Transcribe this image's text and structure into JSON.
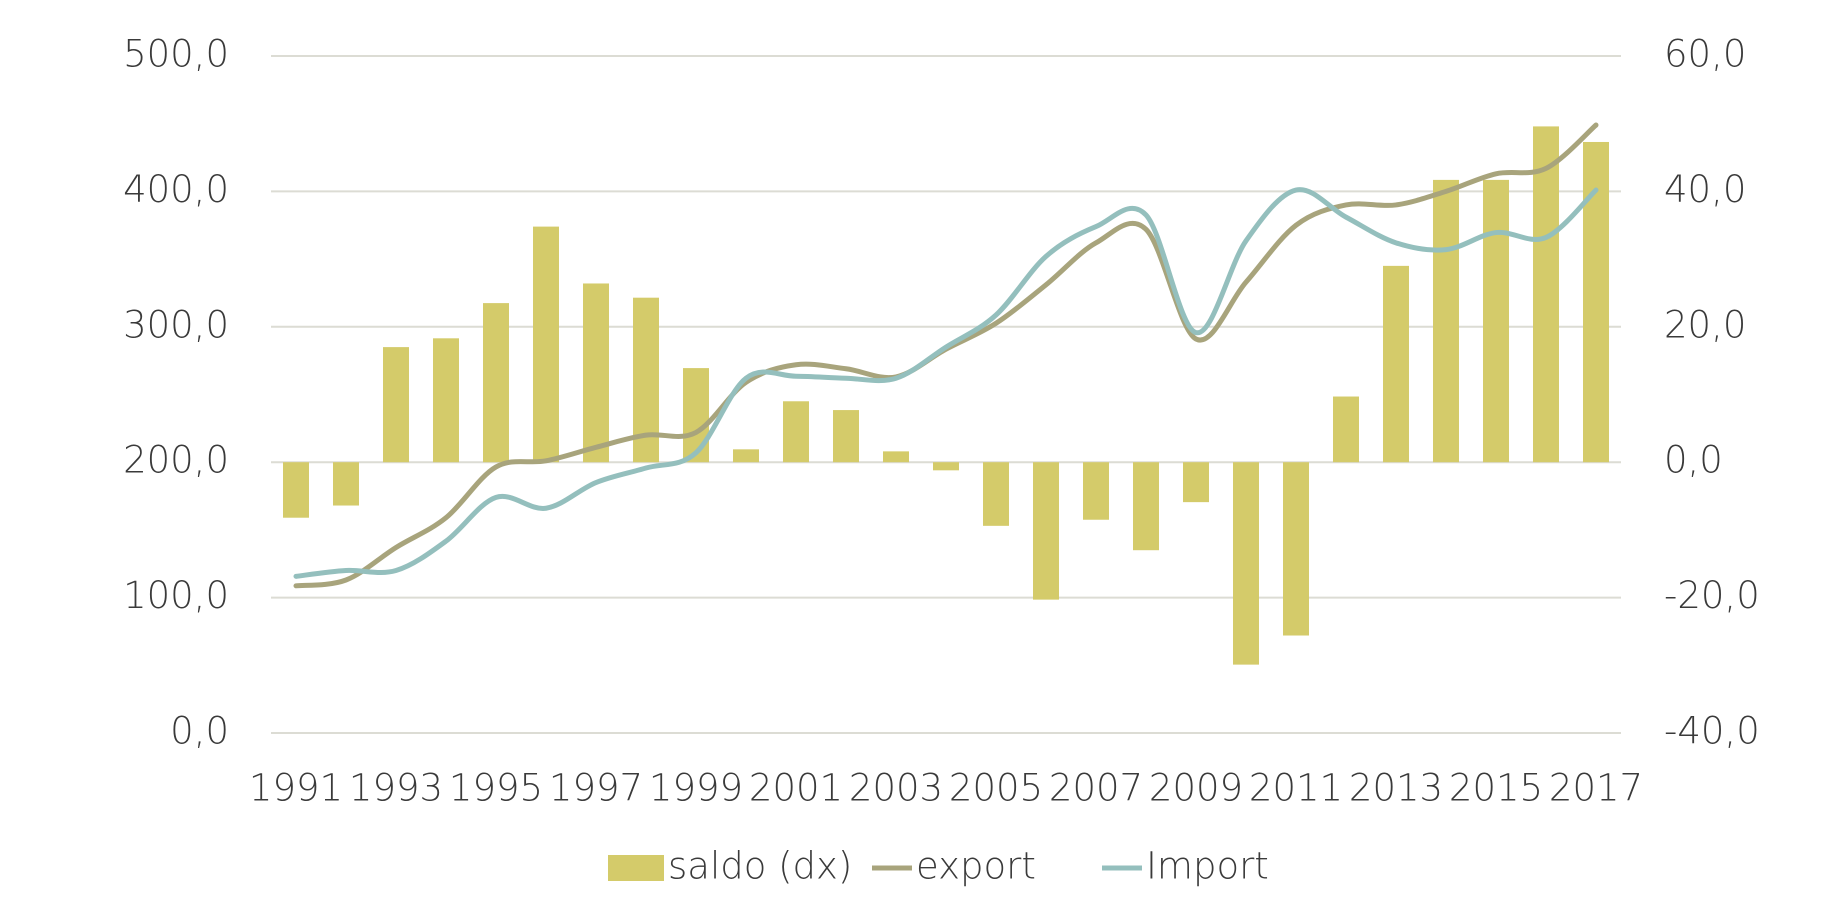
{
  "chart_data": {
    "type": "combo",
    "x": [
      "1991",
      null,
      "1993",
      null,
      "1995",
      null,
      "1997",
      null,
      "1999",
      null,
      "2001",
      null,
      "2003",
      null,
      "2005",
      null,
      "2007",
      null,
      "2009",
      null,
      "2011",
      null,
      "2013",
      null,
      "2015",
      null,
      "2017"
    ],
    "series": [
      {
        "name": "saldo (dx)",
        "type": "bar",
        "axis": "y2",
        "color": "#d4cb6a",
        "values": [
          -8.2,
          -6.4,
          17.0,
          18.3,
          23.5,
          34.8,
          26.4,
          24.3,
          13.9,
          1.9,
          9.0,
          7.7,
          1.6,
          -1.2,
          -9.4,
          -20.3,
          -8.5,
          -13.0,
          -5.9,
          -29.9,
          -25.6,
          9.7,
          29.0,
          41.7,
          41.7,
          49.6,
          47.3
        ]
      },
      {
        "name": "export",
        "type": "line",
        "color": "#a8a47c",
        "values": [
          108.7,
          113,
          137,
          159,
          196.5,
          201,
          211,
          220,
          222,
          259,
          272,
          269,
          263,
          283.5,
          302.6,
          331,
          362,
          372,
          291,
          333,
          375,
          390,
          390,
          400,
          413,
          417,
          449
        ]
      },
      {
        "name": "Import",
        "type": "line",
        "color": "#94bfbd",
        "values": [
          115.7,
          120,
          120,
          141.7,
          174,
          166,
          185,
          195.7,
          207,
          262,
          263.5,
          262,
          262,
          285,
          308.7,
          352,
          374,
          382.6,
          295.7,
          363.5,
          401,
          381,
          362,
          357,
          369.6,
          366,
          401
        ]
      }
    ],
    "ylim": [
      0,
      500
    ],
    "yticks": [
      {
        "value": 0,
        "label": "0,0"
      },
      {
        "value": 100,
        "label": "100,0"
      },
      {
        "value": 200,
        "label": "200,0"
      },
      {
        "value": 300,
        "label": "300,0"
      },
      {
        "value": 400,
        "label": "400,0"
      },
      {
        "value": 500,
        "label": "500,0"
      }
    ],
    "y2lim": [
      -40,
      60
    ],
    "y2ticks": [
      {
        "value": -40,
        "label": "-40,0"
      },
      {
        "value": -20,
        "label": "-20,0"
      },
      {
        "value": 0,
        "label": "0,0"
      },
      {
        "value": 20,
        "label": "20,0"
      },
      {
        "value": 40,
        "label": "40,0"
      },
      {
        "value": 60,
        "label": "60,0"
      }
    ],
    "grid": true,
    "legend": "bottom"
  }
}
